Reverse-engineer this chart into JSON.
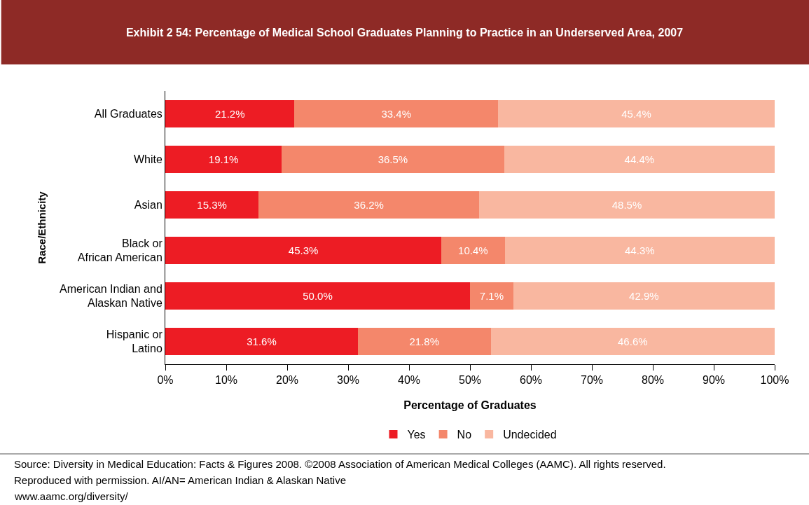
{
  "chart_data": {
    "type": "bar",
    "orientation": "horizontal",
    "stacked": true,
    "title": "Exhibit 2 54: Percentage of Medical School Graduates Planning to Practice in an Underserved Area, 2007",
    "xlabel": "Percentage of Graduates",
    "ylabel": "Race/Ethnicity",
    "categories": [
      "All Graduates",
      "White",
      "Asian",
      "Black or\nAfrican American",
      "American Indian and\nAlaskan Native",
      "Hispanic or\nLatino"
    ],
    "series": [
      {
        "name": "Yes",
        "color": "#ed1c24",
        "values": [
          21.2,
          19.1,
          15.3,
          45.3,
          50.0,
          31.6
        ],
        "value_labels": [
          "21.2%",
          "19.1%",
          "15.3%",
          "45.3%",
          "50.0%",
          "31.6%"
        ]
      },
      {
        "name": "No",
        "color": "#f4876b",
        "values": [
          33.4,
          36.5,
          36.2,
          10.4,
          7.1,
          21.8
        ],
        "value_labels": [
          "33.4%",
          "36.5%",
          "36.2%",
          "10.4%",
          "7.1%",
          "21.8%"
        ]
      },
      {
        "name": "Undecided",
        "color": "#f9b7a0",
        "values": [
          45.4,
          44.4,
          48.5,
          44.3,
          42.9,
          46.6
        ],
        "value_labels": [
          "45.4%",
          "44.4%",
          "48.5%",
          "44.3%",
          "42.9%",
          "46.6%"
        ]
      }
    ],
    "xlim": [
      0,
      100
    ],
    "xticks": [
      {
        "value": 0,
        "label": "0%"
      },
      {
        "value": 10,
        "label": "10%"
      },
      {
        "value": 20,
        "label": "20%"
      },
      {
        "value": 30,
        "label": "30%"
      },
      {
        "value": 40,
        "label": "40%"
      },
      {
        "value": 50,
        "label": "50%"
      },
      {
        "value": 60,
        "label": "60%"
      },
      {
        "value": 70,
        "label": "70%"
      },
      {
        "value": 80,
        "label": "80%"
      },
      {
        "value": 90,
        "label": "90%"
      },
      {
        "value": 100,
        "label": "100%"
      }
    ],
    "legend": "bottom",
    "annotations": [
      "Source: Diversity in Medical Education: Facts & Figures 2008. ©2008 Association of American Medical Colleges (AAMC). All rights reserved.",
      "Reproduced with permission. AI/AN= American Indian & Alaskan Native",
      "www.aamc.org/diversity/"
    ]
  }
}
